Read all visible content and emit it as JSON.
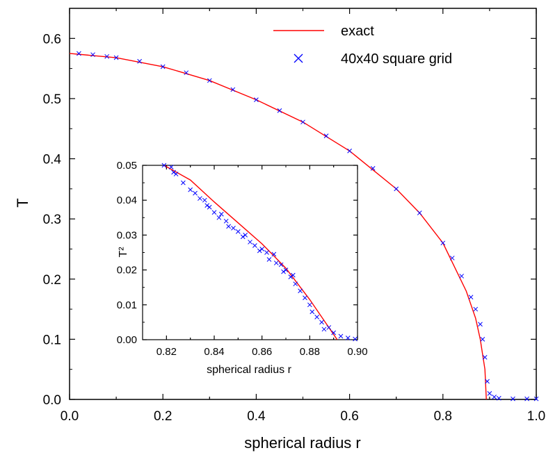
{
  "chart_data": [
    {
      "type": "line",
      "xlabel": "spherical radius  r",
      "ylabel": "T",
      "xlim": [
        0.0,
        1.0
      ],
      "ylim": [
        0.0,
        0.65
      ],
      "x_ticks": [
        "0.0",
        "0.2",
        "0.4",
        "0.6",
        "0.8",
        "1.0"
      ],
      "y_ticks": [
        "0.0",
        "0.1",
        "0.2",
        "0.3",
        "0.4",
        "0.5",
        "0.6"
      ],
      "legend_position": "top-right",
      "series": [
        {
          "name": "exact",
          "kind": "line",
          "color": "#ff0000",
          "x": [
            0.0,
            0.1,
            0.2,
            0.3,
            0.4,
            0.5,
            0.6,
            0.7,
            0.75,
            0.8,
            0.85,
            0.87,
            0.88,
            0.89,
            0.893
          ],
          "y": [
            0.575,
            0.568,
            0.553,
            0.53,
            0.498,
            0.461,
            0.413,
            0.35,
            0.31,
            0.26,
            0.18,
            0.135,
            0.1,
            0.05,
            0.0
          ]
        },
        {
          "name": "40x40 square grid",
          "kind": "scatter",
          "marker": "x",
          "color": "#0000ff",
          "x": [
            0.02,
            0.05,
            0.08,
            0.1,
            0.15,
            0.2,
            0.25,
            0.3,
            0.35,
            0.4,
            0.45,
            0.5,
            0.55,
            0.6,
            0.65,
            0.7,
            0.75,
            0.8,
            0.82,
            0.84,
            0.86,
            0.87,
            0.88,
            0.885,
            0.89,
            0.895,
            0.9,
            0.91,
            0.92,
            0.95,
            0.98,
            1.0
          ],
          "y": [
            0.575,
            0.573,
            0.57,
            0.568,
            0.562,
            0.553,
            0.543,
            0.53,
            0.515,
            0.498,
            0.48,
            0.461,
            0.438,
            0.413,
            0.384,
            0.35,
            0.31,
            0.26,
            0.235,
            0.205,
            0.17,
            0.15,
            0.125,
            0.1,
            0.07,
            0.03,
            0.01,
            0.004,
            0.002,
            0.001,
            0.001,
            0.001
          ]
        }
      ]
    },
    {
      "type": "line",
      "inset": true,
      "xlabel": "spherical radius  r",
      "ylabel": "T²",
      "xlim": [
        0.81,
        0.9
      ],
      "ylim": [
        0.0,
        0.05
      ],
      "x_ticks": [
        "0.82",
        "0.84",
        "0.86",
        "0.88",
        "0.90"
      ],
      "y_ticks": [
        "0.00",
        "0.01",
        "0.02",
        "0.03",
        "0.04",
        "0.05"
      ],
      "series": [
        {
          "name": "exact",
          "kind": "line",
          "color": "#ff0000",
          "x": [
            0.819,
            0.83,
            0.84,
            0.85,
            0.86,
            0.87,
            0.88,
            0.8915
          ],
          "y": [
            0.05,
            0.0458,
            0.0395,
            0.0335,
            0.0275,
            0.0205,
            0.0115,
            0.0
          ]
        },
        {
          "name": "40x40 square grid",
          "kind": "scatter",
          "marker": "x",
          "color": "#0000ff",
          "x": [
            0.819,
            0.822,
            0.823,
            0.824,
            0.827,
            0.83,
            0.832,
            0.834,
            0.836,
            0.837,
            0.838,
            0.84,
            0.842,
            0.843,
            0.845,
            0.846,
            0.848,
            0.85,
            0.852,
            0.853,
            0.855,
            0.857,
            0.859,
            0.86,
            0.862,
            0.863,
            0.865,
            0.866,
            0.868,
            0.869,
            0.87,
            0.872,
            0.873,
            0.874,
            0.876,
            0.878,
            0.88,
            0.881,
            0.883,
            0.885,
            0.886,
            0.888,
            0.89,
            0.893,
            0.896,
            0.899
          ],
          "y": [
            0.05,
            0.0495,
            0.048,
            0.0475,
            0.045,
            0.043,
            0.042,
            0.0405,
            0.04,
            0.0385,
            0.038,
            0.0365,
            0.035,
            0.036,
            0.034,
            0.0325,
            0.032,
            0.031,
            0.0295,
            0.03,
            0.028,
            0.027,
            0.0255,
            0.026,
            0.025,
            0.023,
            0.0245,
            0.022,
            0.0215,
            0.0195,
            0.02,
            0.018,
            0.0185,
            0.016,
            0.014,
            0.012,
            0.01,
            0.008,
            0.0065,
            0.005,
            0.003,
            0.0035,
            0.002,
            0.001,
            0.0005,
            0.0002
          ]
        }
      ]
    }
  ]
}
